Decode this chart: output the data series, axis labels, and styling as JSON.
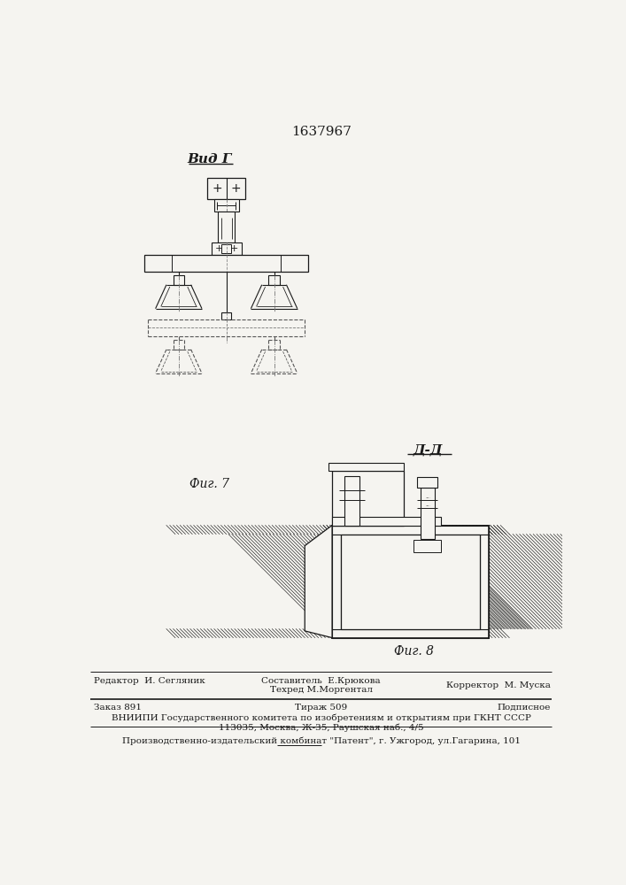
{
  "patent_number": "1637967",
  "bg_color": "#f5f4f0",
  "line_color": "#1a1a1a",
  "fig7_label": "Фиг. 7",
  "fig8_label": "Фиг. 8",
  "vid_label": "Вид Г",
  "dd_label": "Д-Д",
  "footer_line1_left": "Редактор  И. Сегляник",
  "footer_line1_center1": "Составитель  Е.Крюкова",
  "footer_line1_center2": "Техред М.Моргентал",
  "footer_line1_right": "Корректор  М. Муска",
  "footer_line2_left": "Заказ 891",
  "footer_line2_center": "Тираж 509",
  "footer_line2_right": "Подписное",
  "footer_line3": "ВНИИПИ Государственного комитета по изобретениям и открытиям при ГКНТ СССР",
  "footer_line4": "113035, Москва, Ж-35, Раушская наб., 4/5",
  "footer_line5": "Производственно-издательский комбинат \"Патент\", г. Ужгород, ул.Гагарина, 101"
}
